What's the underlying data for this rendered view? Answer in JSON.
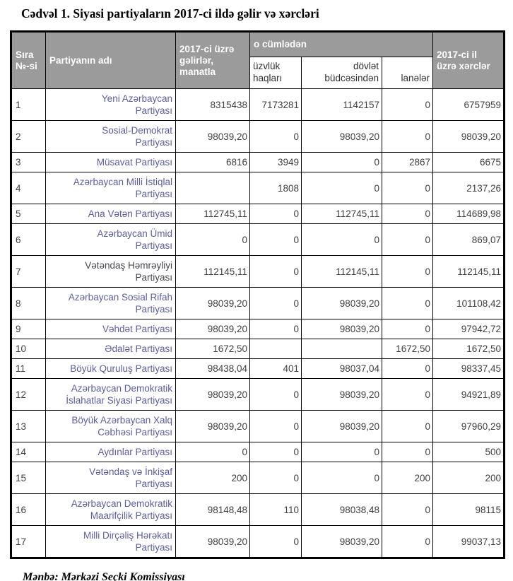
{
  "title": "Cədvəl 1. Siyasi partiyaların 2017-ci ildə gəlir və xərcləri",
  "source": "Mənbə: Mərkəzi Seçki Komissiyası",
  "colors": {
    "header_bg": "#9b9b9b",
    "header_text": "#ffffff",
    "party_name": "#5c5ca3",
    "party_name_dark": "#46464d",
    "body_text": "#3f3f3f",
    "border": "#000000"
  },
  "table": {
    "headers": {
      "col_no": "Sıra\n№-si",
      "col_party": "Partiyanın adı",
      "col_income": "2017-ci üzrə\ngəlirlər,\nmanatla",
      "col_group": "o cümlədən",
      "sub_membership": "üzvlük\nhaqları",
      "sub_state_budget": "dövlət\nbüdcəsindən",
      "sub_donations": "lanələr",
      "col_expenses": "2017-ci il\nüzrə xərclər"
    },
    "rows": [
      {
        "no": "1",
        "party": "Yeni Azərbaycan\nPartiyası",
        "income": "8315438",
        "membership": "7173281",
        "state_budget": "1142157",
        "donations": "0",
        "expenses": "6757959"
      },
      {
        "no": "2",
        "party": "Sosial-Demokrat\nPartiyası",
        "income": "98039,20",
        "membership": "0",
        "state_budget": "98039,20",
        "donations": "0",
        "expenses": "98039,20"
      },
      {
        "no": "3",
        "party": "Müsavat Partiyası",
        "income": "6816",
        "membership": "3949",
        "state_budget": "0",
        "donations": "2867",
        "expenses": "6675"
      },
      {
        "no": "4",
        "party": "Azərbaycan Milli İstiqlal\nPartiyası",
        "income": "",
        "membership": "1808",
        "state_budget": "0",
        "donations": "0",
        "expenses": "2137,26"
      },
      {
        "no": "5",
        "party": "Ana Vətən Partiyası",
        "income": "112745,11",
        "membership": "0",
        "state_budget": "112745,11",
        "donations": "0",
        "expenses": "114689,98"
      },
      {
        "no": "6",
        "party": "Azərbaycan Ümid\nPartiyası",
        "income": "0",
        "membership": "0",
        "state_budget": "0",
        "donations": "0",
        "expenses": "869,07"
      },
      {
        "no": "7",
        "party": "Vətəndaş Həmrəyliyi\nPartiyası",
        "party_color": "dark",
        "income": "112145,11",
        "membership": "0",
        "state_budget": "112145,11",
        "donations": "0",
        "expenses": "112145,11"
      },
      {
        "no": "8",
        "party": "Azərbaycan Sosial Rifah\nPartiyası",
        "income": "98039,20",
        "membership": "0",
        "state_budget": "98039,20",
        "donations": "0",
        "expenses": "101108,42"
      },
      {
        "no": "9",
        "party": "Vəhdət Partiyası",
        "income": "98039,20",
        "membership": "0",
        "state_budget": "98039,20",
        "donations": "0",
        "expenses": "97942,72"
      },
      {
        "no": "10",
        "party": "Ədalət Partiyası",
        "income": "1672,50",
        "membership": "",
        "state_budget": "",
        "donations": "1672,50",
        "expenses": "1672,50"
      },
      {
        "no": "11",
        "party": "Böyük Quruluş Partiyası",
        "income": "98438,04",
        "membership": "401",
        "state_budget": "98037,04",
        "donations": "0",
        "expenses": "98337,45"
      },
      {
        "no": "12",
        "party": "Azərbaycan Demokratik\nİslahatlar Siyasi Partiyası",
        "income": "98039,20",
        "membership": "0",
        "state_budget": "98039,20",
        "donations": "0",
        "expenses": "94921,89"
      },
      {
        "no": "13",
        "party": "Böyük Azərbaycan Xalq\nCəbhəsi Partiyası",
        "income": "98039,20",
        "membership": "0",
        "state_budget": "98039,20",
        "donations": "0",
        "expenses": "97960,29"
      },
      {
        "no": "14",
        "party": "Aydınlar Partiyası",
        "income": "0",
        "membership": "0",
        "state_budget": "0",
        "donations": "0",
        "expenses": "500"
      },
      {
        "no": "15",
        "party": "Vətəndaş və İnkişaf\nPartiyası",
        "income": "200",
        "membership": "0",
        "state_budget": "0",
        "donations": "200",
        "expenses": "200"
      },
      {
        "no": "16",
        "party": "Azərbaycan Demokratik\nMaarifçilik Partiyası",
        "income": "98148,48",
        "membership": "110",
        "state_budget": "98038,48",
        "donations": "0",
        "expenses": "98115"
      },
      {
        "no": "17",
        "party": "Milli Dirçəliş Hərəkatı\nPartiyası",
        "income": "98039,20",
        "membership": "0",
        "state_budget": "98039,20",
        "donations": "0",
        "expenses": "99037,13"
      }
    ]
  }
}
